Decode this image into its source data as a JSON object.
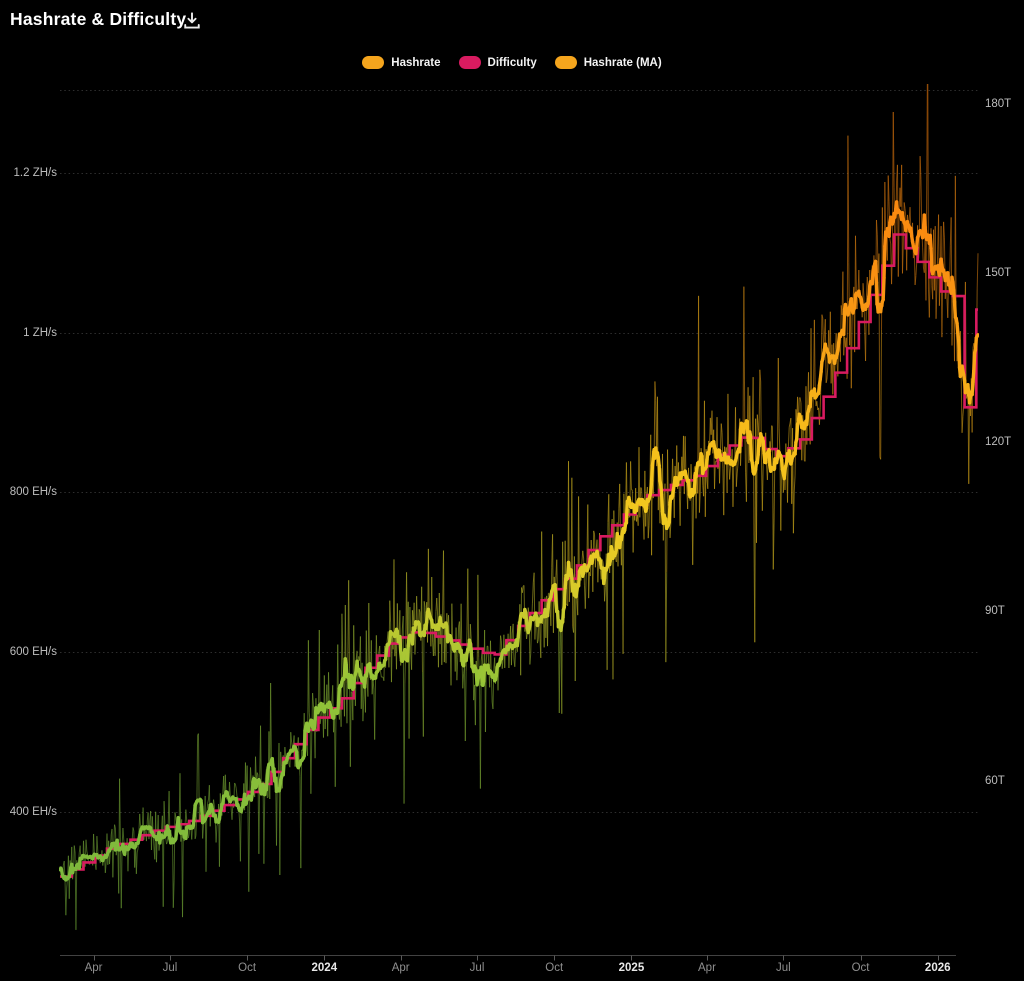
{
  "header": {
    "title": "Hashrate & Difficulty"
  },
  "legend": [
    {
      "label": "Hashrate",
      "color": "#F5A51D"
    },
    {
      "label": "Difficulty",
      "color": "#D81B60"
    },
    {
      "label": "Hashrate (MA)",
      "color": "#F5A51D"
    }
  ],
  "chart_data": {
    "type": "line",
    "title": "Hashrate & Difficulty",
    "legend_position": "top-center",
    "grid": {
      "horizontal_dotted": true,
      "vertical": false
    },
    "x_axis": {
      "start": "2023-02-20",
      "end": "2026-02-18",
      "ticks": [
        {
          "date": "2023-04-01",
          "label": "Apr",
          "emph": false
        },
        {
          "date": "2023-07-01",
          "label": "Jul",
          "emph": false
        },
        {
          "date": "2023-10-01",
          "label": "Oct",
          "emph": false
        },
        {
          "date": "2024-01-01",
          "label": "2024",
          "emph": true
        },
        {
          "date": "2024-04-01",
          "label": "Apr",
          "emph": false
        },
        {
          "date": "2024-07-01",
          "label": "Jul",
          "emph": false
        },
        {
          "date": "2024-10-01",
          "label": "Oct",
          "emph": false
        },
        {
          "date": "2025-01-01",
          "label": "2025",
          "emph": true
        },
        {
          "date": "2025-04-01",
          "label": "Apr",
          "emph": false
        },
        {
          "date": "2025-07-01",
          "label": "Jul",
          "emph": false
        },
        {
          "date": "2025-10-01",
          "label": "Oct",
          "emph": false
        },
        {
          "date": "2026-01-01",
          "label": "2026",
          "emph": true
        }
      ]
    },
    "left_axis": {
      "unit": "EH/s",
      "range": [
        220,
        1310
      ],
      "ticks": [
        {
          "value": 400,
          "label": "400 EH/s"
        },
        {
          "value": 600,
          "label": "600 EH/s"
        },
        {
          "value": 800,
          "label": "800 EH/s"
        },
        {
          "value": 1000,
          "label": "1 ZH/s"
        },
        {
          "value": 1200,
          "label": "1.2 ZH/s"
        }
      ]
    },
    "right_axis": {
      "unit": "T",
      "range": [
        29.0,
        183.3
      ],
      "ticks": [
        {
          "value": 60,
          "label": "60T"
        },
        {
          "value": 90,
          "label": "90T"
        },
        {
          "value": 120,
          "label": "120T"
        },
        {
          "value": 150,
          "label": "150T"
        },
        {
          "value": 180,
          "label": "180T"
        }
      ]
    },
    "value_color_stops": [
      [
        300,
        "#7CB83D"
      ],
      [
        560,
        "#92C338"
      ],
      [
        640,
        "#C6CA2F"
      ],
      [
        710,
        "#E4CB27"
      ],
      [
        780,
        "#F2C91F"
      ],
      [
        880,
        "#F6BB1B"
      ],
      [
        980,
        "#F8A216"
      ],
      [
        1080,
        "#F98F12"
      ],
      [
        1300,
        "#FA7E0C"
      ]
    ],
    "series": [
      {
        "name": "Hashrate",
        "style": "noisy-daily",
        "axis": "left",
        "color": "gradient-by-value",
        "opacity": 0.62,
        "note": "daily estimates scattered around the MA curve",
        "noise": {
          "seed": 42,
          "base_amp": 0.11,
          "dip_prob": 0.05,
          "dip_amp": 0.3,
          "spike_prob": 0.05,
          "spike_amp": 0.22
        }
      },
      {
        "name": "Difficulty",
        "style": "step-14d",
        "axis": "right",
        "color": "#D81B60",
        "anchors": [
          [
            "2023-02-20",
            43.0
          ],
          [
            "2023-03-20",
            45.5
          ],
          [
            "2023-04-20",
            48.2
          ],
          [
            "2023-05-20",
            49.8
          ],
          [
            "2023-06-20",
            51.6
          ],
          [
            "2023-07-20",
            52.6
          ],
          [
            "2023-08-20",
            54.6
          ],
          [
            "2023-09-20",
            56.8
          ],
          [
            "2023-10-20",
            59.8
          ],
          [
            "2023-11-20",
            65.2
          ],
          [
            "2023-12-20",
            70.6
          ],
          [
            "2024-01-20",
            74.2
          ],
          [
            "2024-02-20",
            80.2
          ],
          [
            "2024-03-20",
            84.6
          ],
          [
            "2024-04-20",
            86.6
          ],
          [
            "2024-05-20",
            85.2
          ],
          [
            "2024-06-20",
            83.6
          ],
          [
            "2024-07-20",
            82.0
          ],
          [
            "2024-08-20",
            87.6
          ],
          [
            "2024-09-20",
            92.6
          ],
          [
            "2024-10-20",
            96.6
          ],
          [
            "2024-11-20",
            102.6
          ],
          [
            "2024-12-20",
            106.8
          ],
          [
            "2025-01-20",
            110.6
          ],
          [
            "2025-02-20",
            112.6
          ],
          [
            "2025-03-20",
            114.2
          ],
          [
            "2025-04-20",
            118.6
          ],
          [
            "2025-05-20",
            121.6
          ],
          [
            "2025-06-20",
            117.2
          ],
          [
            "2025-07-20",
            120.2
          ],
          [
            "2025-08-20",
            128.6
          ],
          [
            "2025-09-20",
            138.2
          ],
          [
            "2025-10-20",
            148.5
          ],
          [
            "2025-11-10",
            156.8
          ],
          [
            "2025-11-25",
            154.2
          ],
          [
            "2025-12-10",
            151.6
          ],
          [
            "2025-12-25",
            148.6
          ],
          [
            "2026-01-08",
            146.2
          ],
          [
            "2026-01-22",
            145.8
          ],
          [
            "2026-02-01",
            126.2
          ],
          [
            "2026-02-15",
            125.8
          ],
          [
            "2026-02-16",
            143.5
          ],
          [
            "2026-02-18",
            143.5
          ]
        ]
      },
      {
        "name": "Hashrate (MA)",
        "style": "smooth",
        "axis": "left",
        "color": "gradient-by-value",
        "anchors": [
          [
            "2023-02-20",
            330
          ],
          [
            "2023-03-20",
            338
          ],
          [
            "2023-04-20",
            350
          ],
          [
            "2023-05-20",
            363
          ],
          [
            "2023-06-20",
            375
          ],
          [
            "2023-07-20",
            383
          ],
          [
            "2023-08-20",
            397
          ],
          [
            "2023-09-20",
            417
          ],
          [
            "2023-10-20",
            440
          ],
          [
            "2023-11-20",
            470
          ],
          [
            "2023-12-20",
            504
          ],
          [
            "2024-01-20",
            540
          ],
          [
            "2024-02-20",
            574
          ],
          [
            "2024-03-20",
            608
          ],
          [
            "2024-04-20",
            632
          ],
          [
            "2024-05-20",
            625
          ],
          [
            "2024-06-20",
            597
          ],
          [
            "2024-07-20",
            578
          ],
          [
            "2024-08-20",
            622
          ],
          [
            "2024-09-20",
            648
          ],
          [
            "2024-10-20",
            683
          ],
          [
            "2024-11-20",
            714
          ],
          [
            "2024-12-20",
            758
          ],
          [
            "2025-01-20",
            797
          ],
          [
            "2025-02-20",
            810
          ],
          [
            "2025-03-20",
            825
          ],
          [
            "2025-04-20",
            849
          ],
          [
            "2025-05-20",
            872
          ],
          [
            "2025-06-20",
            828
          ],
          [
            "2025-07-20",
            866
          ],
          [
            "2025-08-20",
            944
          ],
          [
            "2025-09-20",
            1020
          ],
          [
            "2025-10-20",
            1092
          ],
          [
            "2025-11-05",
            1133
          ],
          [
            "2025-11-20",
            1126
          ],
          [
            "2025-12-05",
            1118
          ],
          [
            "2025-12-20",
            1104
          ],
          [
            "2026-01-05",
            1082
          ],
          [
            "2026-01-20",
            1034
          ],
          [
            "2026-02-02",
            918
          ],
          [
            "2026-02-08",
            896
          ],
          [
            "2026-02-12",
            942
          ],
          [
            "2026-02-18",
            1034
          ]
        ]
      }
    ]
  }
}
